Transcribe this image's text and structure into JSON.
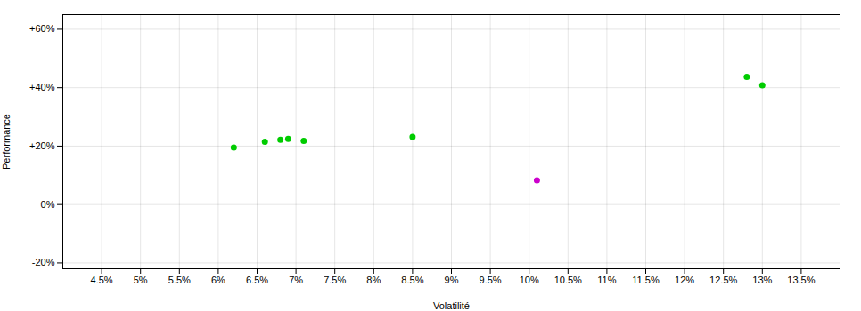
{
  "chart_data": {
    "type": "scatter",
    "xlabel": "Volatilité",
    "ylabel": "Performance",
    "xlim": [
      0.04,
      0.14
    ],
    "ylim": [
      -0.22,
      0.65
    ],
    "xticks": [
      {
        "value": 0.045,
        "label": "4.5%"
      },
      {
        "value": 0.05,
        "label": "5%"
      },
      {
        "value": 0.055,
        "label": "5.5%"
      },
      {
        "value": 0.06,
        "label": "6%"
      },
      {
        "value": 0.065,
        "label": "6.5%"
      },
      {
        "value": 0.07,
        "label": "7%"
      },
      {
        "value": 0.075,
        "label": "7.5%"
      },
      {
        "value": 0.08,
        "label": "8%"
      },
      {
        "value": 0.085,
        "label": "8.5%"
      },
      {
        "value": 0.09,
        "label": "9%"
      },
      {
        "value": 0.095,
        "label": "9.5%"
      },
      {
        "value": 0.1,
        "label": "10%"
      },
      {
        "value": 0.105,
        "label": "10.5%"
      },
      {
        "value": 0.11,
        "label": "11%"
      },
      {
        "value": 0.115,
        "label": "11.5%"
      },
      {
        "value": 0.12,
        "label": "12%"
      },
      {
        "value": 0.125,
        "label": "12.5%"
      },
      {
        "value": 0.13,
        "label": "13%"
      },
      {
        "value": 0.135,
        "label": "13.5%"
      }
    ],
    "yticks": [
      {
        "value": -0.2,
        "label": "-20%"
      },
      {
        "value": 0.0,
        "label": "0%"
      },
      {
        "value": 0.2,
        "label": "+20%"
      },
      {
        "value": 0.4,
        "label": "+40%"
      },
      {
        "value": 0.6,
        "label": "+60%"
      }
    ],
    "grid": true,
    "series": [
      {
        "color": "#00cc00",
        "marker": "circle",
        "x": [
          0.062,
          0.066,
          0.068,
          0.069,
          0.071,
          0.085,
          0.128,
          0.13
        ],
        "values": [
          0.195,
          0.215,
          0.222,
          0.225,
          0.218,
          0.232,
          0.437,
          0.408
        ]
      },
      {
        "color": "#cc00cc",
        "marker": "circle",
        "x": [
          0.101
        ],
        "values": [
          0.083
        ]
      }
    ]
  }
}
